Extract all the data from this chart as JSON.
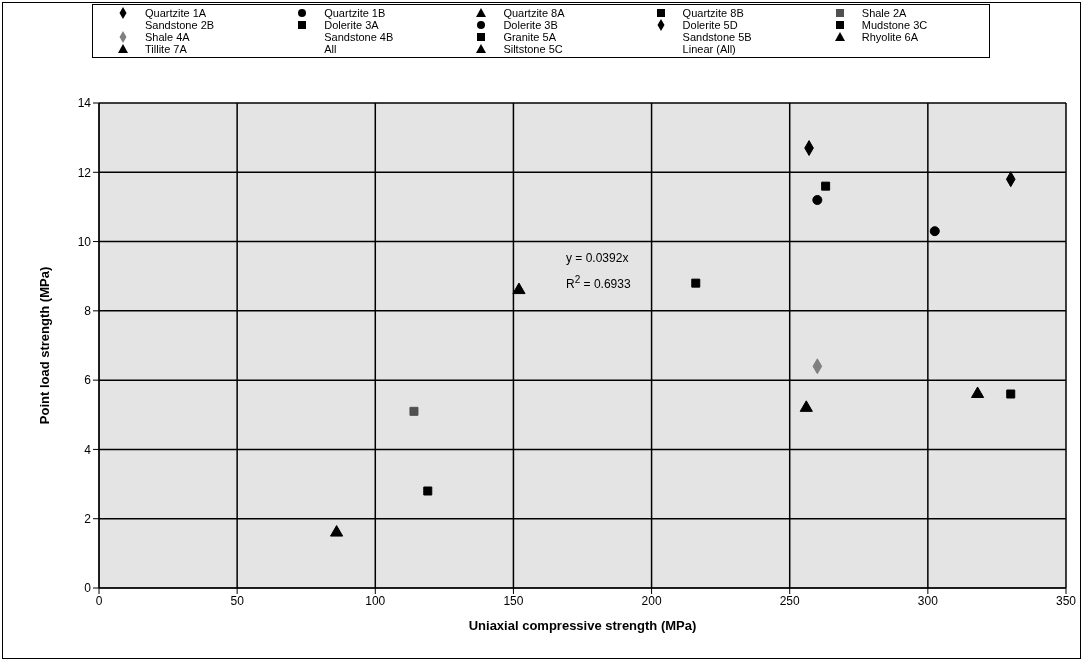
{
  "chart_data": {
    "type": "scatter",
    "xlabel": "Uniaxial compressive strength (MPa)",
    "ylabel": "Point load strength (MPa)",
    "xlim": [
      0,
      350
    ],
    "xticks": [
      0,
      50,
      100,
      150,
      200,
      250,
      300,
      350
    ],
    "ylim": [
      0,
      14
    ],
    "yticks": [
      0,
      2,
      4,
      6,
      8,
      10,
      12,
      14
    ],
    "grid": true,
    "legend": "top",
    "annotations": [
      "y = 0.0392x",
      "R$^{2}$ = 0.6933"
    ],
    "series": [
      {
        "name": "Quartzite 1A",
        "color": "#000000",
        "marker": "diamond",
        "x": [
          257
        ],
        "values": [
          12.7
        ]
      },
      {
        "name": "Quartzite 1B",
        "color": "#000000",
        "marker": "circle",
        "x": [
          260
        ],
        "values": [
          11.2
        ]
      },
      {
        "name": "Quartzite 8A",
        "color": "#000000",
        "marker": "triangle",
        "x": [
          152
        ],
        "values": [
          8.6
        ]
      },
      {
        "name": "Quartzite 8B",
        "color": "#000000",
        "marker": "square",
        "x": [
          216
        ],
        "values": [
          8.8
        ]
      },
      {
        "name": "Shale 2A",
        "color": "#505050",
        "marker": "square",
        "x": [
          114
        ],
        "values": [
          5.1
        ]
      },
      {
        "name": "Sandstone 2B",
        "color": "#000000",
        "marker": "none"
      },
      {
        "name": "Dolerite 3A",
        "color": "#000000",
        "marker": "square",
        "x": [
          119
        ],
        "values": [
          2.8
        ]
      },
      {
        "name": "Dolerite 3B",
        "color": "#000000",
        "marker": "circle",
        "x": [
          302.5
        ],
        "values": [
          10.3
        ]
      },
      {
        "name": "Dolerite 5D",
        "color": "#000000",
        "marker": "diamond",
        "x": [
          330
        ],
        "values": [
          11.8
        ]
      },
      {
        "name": "Mudstone 3C",
        "color": "#000000",
        "marker": "square",
        "x": [
          330
        ],
        "values": [
          5.6
        ]
      },
      {
        "name": "Shale 4A",
        "color": "#808080",
        "marker": "diamond",
        "x": [
          260
        ],
        "values": [
          6.4
        ]
      },
      {
        "name": "Sandstone 4B",
        "color": "#000000",
        "marker": "none"
      },
      {
        "name": "Granite 5A",
        "color": "#000000",
        "marker": "square",
        "x": [
          263
        ],
        "values": [
          11.6
        ]
      },
      {
        "name": "Sandstone 5B",
        "color": "#000000",
        "marker": "none"
      },
      {
        "name": "Rhyolite 6A",
        "color": "#000000",
        "marker": "triangle",
        "x": [
          318
        ],
        "values": [
          5.6
        ]
      },
      {
        "name": "Tillite 7A",
        "color": "#000000",
        "marker": "triangle",
        "x": [
          86
        ],
        "values": [
          1.6
        ]
      },
      {
        "name": "All",
        "color": "#000000",
        "marker": "none"
      },
      {
        "name": "Siltstone 5C",
        "color": "#000000",
        "marker": "triangle",
        "x": [
          256
        ],
        "values": [
          5.2
        ]
      },
      {
        "name": "Linear (All)",
        "color": "#000000",
        "marker": "none"
      }
    ]
  }
}
